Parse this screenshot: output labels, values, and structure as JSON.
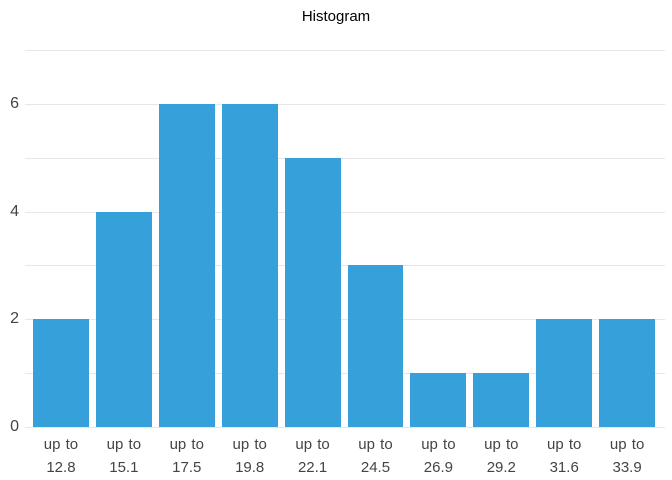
{
  "title": "Histogram",
  "colors": {
    "background": "#ffffff",
    "bar": "#36a0db",
    "gridline": "#e7e7e7",
    "axis_text": "#444444",
    "title_text": "#000000"
  },
  "chart_data": {
    "type": "bar",
    "subtype": "histogram",
    "title": "Histogram",
    "categories": [
      "up to 12.8",
      "up to 15.1",
      "up to 17.5",
      "up to 19.8",
      "up to 22.1",
      "up to 24.5",
      "up to 26.9",
      "up to 29.2",
      "up to 31.6",
      "up to 33.9"
    ],
    "values": [
      2,
      4,
      6,
      6,
      5,
      3,
      1,
      1,
      2,
      2
    ],
    "xlabel": "",
    "ylabel": "",
    "ylim": [
      0,
      7
    ],
    "yticks_labeled": [
      0,
      2,
      4,
      6
    ],
    "gridlines_every": 1,
    "grid": true,
    "legend": false,
    "bar_color": "#36a0db"
  }
}
